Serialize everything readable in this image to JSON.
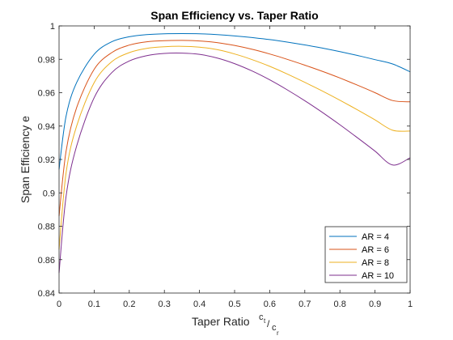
{
  "chart_data": {
    "type": "line",
    "title": "Span Efficiency vs. Taper Ratio",
    "xlabel": "Taper Ratio",
    "xlabel_fraction": {
      "numerator": "c",
      "numerator_sub": "t",
      "denominator": "c",
      "denominator_sub": "r"
    },
    "ylabel": "Span Efficiency e",
    "xlim": [
      0,
      1
    ],
    "ylim": [
      0.84,
      1
    ],
    "xticks": [
      0,
      0.1,
      0.2,
      0.3,
      0.4,
      0.5,
      0.6,
      0.7,
      0.8,
      0.9,
      1
    ],
    "xtick_labels": [
      "0",
      "0.1",
      "0.2",
      "0.3",
      "0.4",
      "0.5",
      "0.6",
      "0.7",
      "0.8",
      "0.9",
      "1"
    ],
    "yticks": [
      0.84,
      0.86,
      0.88,
      0.9,
      0.92,
      0.94,
      0.96,
      0.98,
      1
    ],
    "ytick_labels": [
      "0.84",
      "0.86",
      "0.88",
      "0.9",
      "0.92",
      "0.94",
      "0.96",
      "0.98",
      "1"
    ],
    "grid": false,
    "legend_position": "bottom-right",
    "x": [
      0,
      0.02,
      0.05,
      0.1,
      0.15,
      0.2,
      0.25,
      0.3,
      0.35,
      0.4,
      0.45,
      0.5,
      0.55,
      0.6,
      0.65,
      0.7,
      0.75,
      0.8,
      0.85,
      0.9,
      0.95,
      1
    ],
    "series": [
      {
        "name": "AR = 4",
        "color": "#0072BD",
        "values": [
          0.914,
          0.946,
          0.966,
          0.983,
          0.9905,
          0.9935,
          0.9948,
          0.9953,
          0.9954,
          0.9953,
          0.9948,
          0.994,
          0.993,
          0.9918,
          0.9903,
          0.9886,
          0.9867,
          0.9846,
          0.9823,
          0.9798,
          0.9772,
          0.9725
        ]
      },
      {
        "name": "AR = 6",
        "color": "#D95319",
        "values": [
          0.886,
          0.925,
          0.951,
          0.974,
          0.984,
          0.9885,
          0.9905,
          0.9912,
          0.9913,
          0.991,
          0.99,
          0.9883,
          0.986,
          0.9832,
          0.98,
          0.9765,
          0.9728,
          0.9688,
          0.9645,
          0.96,
          0.9553,
          0.9545
        ]
      },
      {
        "name": "AR = 8",
        "color": "#EDB120",
        "values": [
          0.866,
          0.912,
          0.94,
          0.966,
          0.9785,
          0.984,
          0.9865,
          0.9875,
          0.9878,
          0.9873,
          0.9858,
          0.9832,
          0.9798,
          0.9758,
          0.9712,
          0.9662,
          0.961,
          0.9555,
          0.9497,
          0.9437,
          0.9375,
          0.937
        ]
      },
      {
        "name": "AR = 10",
        "color": "#7E2F8E",
        "values": [
          0.852,
          0.898,
          0.928,
          0.957,
          0.972,
          0.979,
          0.9822,
          0.9835,
          0.9837,
          0.983,
          0.9808,
          0.9774,
          0.973,
          0.9677,
          0.9617,
          0.9552,
          0.9482,
          0.9408,
          0.933,
          0.925,
          0.9167,
          0.921
        ]
      }
    ]
  }
}
